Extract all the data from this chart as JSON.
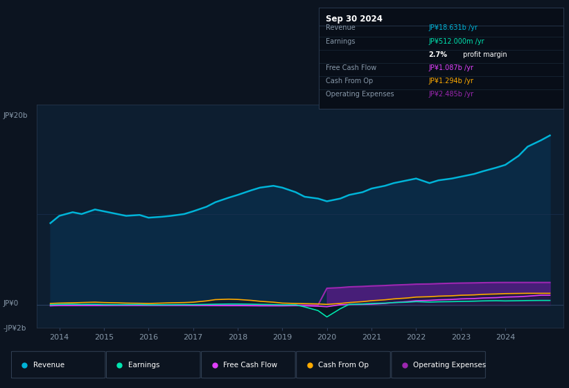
{
  "bg_color": "#0c1420",
  "chart_bg": "#0d1e30",
  "revenue_color": "#00b4d8",
  "earnings_color": "#00e5b0",
  "fcf_color": "#e040fb",
  "cashop_color": "#ffab00",
  "opex_color": "#9c27b0",
  "revenue_fill": "#0a2a45",
  "info_box_bg": "#080e18",
  "grid_color": "#1a3050",
  "text_color": "#8899aa",
  "white": "#ffffff",
  "info": {
    "date": "Sep 30 2024",
    "revenue_label": "Revenue",
    "revenue_val": "JP¥18.631b",
    "revenue_color": "#00b4d8",
    "earnings_label": "Earnings",
    "earnings_val": "JP¥512.000m",
    "earnings_color": "#00e5b0",
    "margin_pct": "2.7%",
    "margin_text": "profit margin",
    "fcf_label": "Free Cash Flow",
    "fcf_val": "JP¥1.087b",
    "fcf_color": "#e040fb",
    "cashop_label": "Cash From Op",
    "cashop_val": "JP¥1.294b",
    "cashop_color": "#ffab00",
    "opex_label": "Operating Expenses",
    "opex_val": "JP¥2.485b",
    "opex_color": "#9c27b0"
  },
  "years": [
    2013.8,
    2014.0,
    2014.3,
    2014.5,
    2014.8,
    2015.0,
    2015.3,
    2015.5,
    2015.8,
    2016.0,
    2016.3,
    2016.5,
    2016.8,
    2017.0,
    2017.3,
    2017.5,
    2017.8,
    2018.0,
    2018.3,
    2018.5,
    2018.8,
    2019.0,
    2019.3,
    2019.5,
    2019.8,
    2020.0,
    2020.3,
    2020.5,
    2020.8,
    2021.0,
    2021.3,
    2021.5,
    2021.8,
    2022.0,
    2022.3,
    2022.5,
    2022.8,
    2023.0,
    2023.3,
    2023.5,
    2023.8,
    2024.0,
    2024.3,
    2024.5,
    2024.8,
    2025.0
  ],
  "revenue": [
    9.0,
    9.8,
    10.2,
    10.0,
    10.5,
    10.3,
    10.0,
    9.8,
    9.9,
    9.6,
    9.7,
    9.8,
    10.0,
    10.3,
    10.8,
    11.3,
    11.8,
    12.1,
    12.6,
    12.9,
    13.1,
    12.9,
    12.4,
    11.9,
    11.7,
    11.4,
    11.7,
    12.1,
    12.4,
    12.8,
    13.1,
    13.4,
    13.7,
    13.9,
    13.4,
    13.7,
    13.9,
    14.1,
    14.4,
    14.7,
    15.1,
    15.4,
    16.4,
    17.4,
    18.1,
    18.631
  ],
  "earnings": [
    0.05,
    0.08,
    0.1,
    0.08,
    0.1,
    0.06,
    0.05,
    0.06,
    0.07,
    0.03,
    0.04,
    0.05,
    0.06,
    0.06,
    0.08,
    0.1,
    0.12,
    0.12,
    0.1,
    0.08,
    0.06,
    0.03,
    0.03,
    -0.2,
    -0.6,
    -1.3,
    -0.4,
    0.08,
    0.12,
    0.18,
    0.22,
    0.28,
    0.32,
    0.38,
    0.33,
    0.36,
    0.38,
    0.4,
    0.43,
    0.46,
    0.48,
    0.46,
    0.48,
    0.5,
    0.512,
    0.512
  ],
  "fcf": [
    -0.08,
    -0.04,
    -0.04,
    -0.04,
    -0.04,
    -0.04,
    -0.03,
    -0.03,
    -0.03,
    -0.03,
    -0.03,
    -0.03,
    -0.03,
    -0.04,
    -0.04,
    -0.05,
    -0.06,
    -0.06,
    -0.07,
    -0.08,
    -0.08,
    -0.08,
    -0.06,
    -0.08,
    -0.12,
    -0.18,
    0.04,
    0.06,
    0.08,
    0.1,
    0.18,
    0.28,
    0.38,
    0.48,
    0.52,
    0.58,
    0.62,
    0.68,
    0.72,
    0.78,
    0.82,
    0.88,
    0.92,
    0.98,
    1.087,
    1.087
  ],
  "cashop": [
    0.18,
    0.22,
    0.25,
    0.28,
    0.32,
    0.28,
    0.25,
    0.22,
    0.2,
    0.18,
    0.22,
    0.25,
    0.28,
    0.32,
    0.46,
    0.6,
    0.65,
    0.62,
    0.52,
    0.42,
    0.32,
    0.22,
    0.18,
    0.16,
    0.13,
    0.08,
    0.18,
    0.28,
    0.38,
    0.48,
    0.58,
    0.68,
    0.78,
    0.88,
    0.92,
    0.98,
    1.02,
    1.08,
    1.12,
    1.18,
    1.22,
    1.26,
    1.28,
    1.294,
    1.294,
    1.294
  ],
  "opex": [
    0.0,
    0.0,
    0.0,
    0.0,
    0.0,
    0.0,
    0.0,
    0.0,
    0.0,
    0.0,
    0.0,
    0.0,
    0.0,
    0.0,
    0.0,
    0.0,
    0.0,
    0.0,
    0.0,
    0.0,
    0.0,
    0.0,
    0.0,
    0.0,
    0.0,
    1.85,
    1.92,
    2.0,
    2.05,
    2.1,
    2.15,
    2.2,
    2.25,
    2.3,
    2.32,
    2.36,
    2.4,
    2.42,
    2.44,
    2.46,
    2.48,
    2.485,
    2.485,
    2.485,
    2.485,
    2.485
  ],
  "x_min": 2013.5,
  "x_max": 2025.3,
  "y_min": -2.5,
  "y_max": 22.0,
  "xticks": [
    2014,
    2015,
    2016,
    2017,
    2018,
    2019,
    2020,
    2021,
    2022,
    2023,
    2024
  ],
  "legend_items": [
    {
      "color": "#00b4d8",
      "label": "Revenue"
    },
    {
      "color": "#00e5b0",
      "label": "Earnings"
    },
    {
      "color": "#e040fb",
      "label": "Free Cash Flow"
    },
    {
      "color": "#ffab00",
      "label": "Cash From Op"
    },
    {
      "color": "#9c27b0",
      "label": "Operating Expenses"
    }
  ]
}
